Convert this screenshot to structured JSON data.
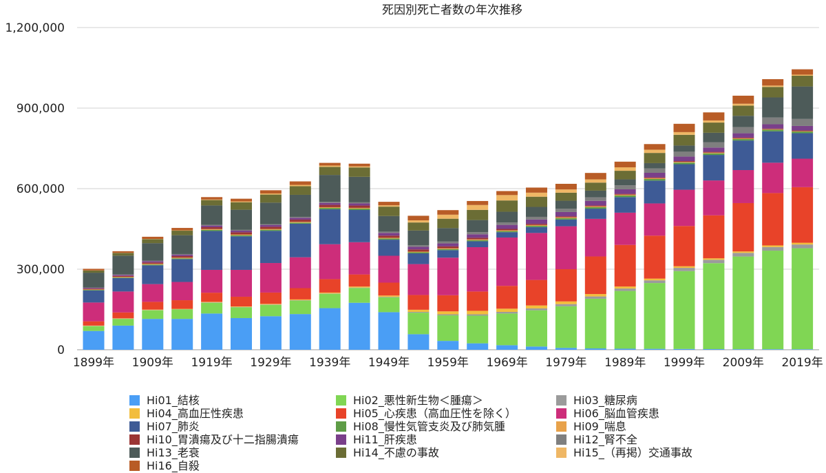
{
  "chart_data": {
    "type": "bar",
    "stacked": true,
    "title": "死因別死亡者数の年次推移",
    "ylim": [
      0,
      1200000
    ],
    "yticks": [
      "0",
      "300,000",
      "600,000",
      "900,000",
      "1,200,000"
    ],
    "ytick_values": [
      0,
      300000,
      600000,
      900000,
      1200000
    ],
    "xtick_labels": [
      "1899年",
      "1909年",
      "1919年",
      "1929年",
      "1939年",
      "1949年",
      "1959年",
      "1969年",
      "1979年",
      "1989年",
      "1999年",
      "2009年",
      "2019年"
    ],
    "categories": [
      1899,
      1904,
      1909,
      1914,
      1919,
      1924,
      1929,
      1934,
      1939,
      1944,
      1949,
      1954,
      1959,
      1964,
      1969,
      1974,
      1979,
      1984,
      1989,
      1994,
      1999,
      2004,
      2009,
      2014,
      2019
    ],
    "series": [
      {
        "name": "Hi01_結核",
        "color": "#4a9ef5",
        "values": [
          70000,
          90000,
          115000,
          115000,
          135000,
          118000,
          125000,
          133000,
          155000,
          175000,
          140000,
          58000,
          33000,
          24000,
          17000,
          12000,
          7000,
          5000,
          4000,
          3500,
          3000,
          2500,
          2200,
          2100,
          2000
        ]
      },
      {
        "name": "Hi02_悪性新生物＜腫瘍＞",
        "color": "#80d654",
        "values": [
          18000,
          25000,
          32000,
          35000,
          40000,
          40000,
          42000,
          50000,
          53000,
          55000,
          55000,
          80000,
          95000,
          103000,
          118000,
          135000,
          155000,
          185000,
          215000,
          245000,
          290000,
          320000,
          345000,
          367000,
          376000
        ]
      },
      {
        "name": "Hi03_糖尿病",
        "color": "#9b9b9b",
        "values": [
          1000,
          1000,
          1000,
          1000,
          1500,
          1500,
          1500,
          1500,
          1500,
          1500,
          2000,
          3000,
          4000,
          5000,
          6000,
          7000,
          8000,
          8500,
          9000,
          10000,
          12000,
          12500,
          13500,
          13500,
          14000
        ]
      },
      {
        "name": "Hi04_高血圧性疾患",
        "color": "#f2bd3c",
        "values": [
          1000,
          1000,
          1500,
          1500,
          2000,
          2000,
          2500,
          3000,
          3500,
          4000,
          5000,
          8000,
          11000,
          13000,
          12000,
          11000,
          10000,
          9000,
          7500,
          6500,
          6000,
          5500,
          5500,
          6000,
          6500
        ]
      },
      {
        "name": "Hi05_心疾患（高血圧性を除く）",
        "color": "#e84329",
        "values": [
          16000,
          22000,
          29000,
          32000,
          34000,
          36000,
          42000,
          42000,
          50000,
          45000,
          48000,
          55000,
          60000,
          72000,
          85000,
          95000,
          120000,
          140000,
          155000,
          160000,
          150000,
          160000,
          180000,
          195000,
          207000
        ]
      },
      {
        "name": "Hi06_脳血管疾患",
        "color": "#cd2d7a",
        "values": [
          70000,
          78000,
          66000,
          68000,
          85000,
          100000,
          110000,
          115000,
          130000,
          120000,
          100000,
          115000,
          140000,
          165000,
          180000,
          175000,
          160000,
          140000,
          120000,
          120000,
          135000,
          130000,
          123000,
          113000,
          106000
        ]
      },
      {
        "name": "Hi07_肺炎",
        "color": "#3e5b96",
        "values": [
          45000,
          50000,
          70000,
          85000,
          145000,
          125000,
          120000,
          125000,
          130000,
          120000,
          60000,
          40000,
          28000,
          22000,
          20000,
          22000,
          25000,
          38000,
          58000,
          85000,
          95000,
          95000,
          110000,
          117000,
          95000
        ]
      },
      {
        "name": "Hi08_慢性気管支炎及び肺気腫",
        "color": "#5e9c46",
        "values": [
          2000,
          2000,
          3000,
          3000,
          4000,
          4000,
          4000,
          4000,
          5000,
          5000,
          4500,
          4000,
          4000,
          4000,
          4000,
          4500,
          5000,
          5500,
          6000,
          6000,
          6000,
          6000,
          6000,
          6000,
          6000
        ]
      },
      {
        "name": "Hi09_喘息",
        "color": "#e8a24a",
        "values": [
          1500,
          2000,
          2500,
          2500,
          3000,
          3000,
          3000,
          3000,
          3000,
          3000,
          2500,
          2500,
          3000,
          3000,
          3000,
          3000,
          3000,
          3000,
          3000,
          3000,
          2500,
          2500,
          2000,
          1500,
          1500
        ]
      },
      {
        "name": "Hi10_胃潰瘍及び十二指腸潰瘍",
        "color": "#9b3534",
        "values": [
          3000,
          4000,
          5000,
          6000,
          7000,
          8000,
          8000,
          8000,
          8500,
          8500,
          8000,
          8000,
          7000,
          6000,
          5000,
          4500,
          4000,
          3500,
          3000,
          3000,
          3000,
          3000,
          3000,
          2700,
          2500
        ]
      },
      {
        "name": "Hi11_肝疾患",
        "color": "#7a3f8a",
        "values": [
          3000,
          4000,
          5000,
          5000,
          6000,
          6000,
          7000,
          7000,
          7500,
          8000,
          10000,
          10000,
          11000,
          13000,
          15000,
          16000,
          16000,
          17000,
          17000,
          17000,
          17000,
          16000,
          16000,
          16000,
          17000
        ]
      },
      {
        "name": "Hi12_腎不全",
        "color": "#7f7f7f",
        "values": [
          1500,
          1500,
          2000,
          2500,
          3000,
          3000,
          3000,
          3500,
          4000,
          4000,
          5000,
          5500,
          7000,
          8000,
          9000,
          10000,
          12000,
          13000,
          15000,
          16000,
          18000,
          20000,
          23000,
          25000,
          26000
        ]
      },
      {
        "name": "Hi13_老衰",
        "color": "#4d5b59",
        "values": [
          55000,
          70000,
          65000,
          70000,
          72000,
          75000,
          80000,
          82000,
          100000,
          95000,
          58000,
          55000,
          50000,
          45000,
          40000,
          37000,
          30000,
          25000,
          22000,
          20000,
          23000,
          35000,
          42000,
          75000,
          121000
        ]
      },
      {
        "name": "Hi14_不慮の事故",
        "color": "#6b6d35",
        "values": [
          8000,
          10000,
          15000,
          17000,
          20000,
          28000,
          30000,
          32000,
          30000,
          35000,
          35000,
          30000,
          35000,
          38000,
          42000,
          38000,
          30000,
          30000,
          32000,
          38000,
          40000,
          38000,
          38000,
          39000,
          40000
        ]
      },
      {
        "name": "Hi15_（再掲）交通事故",
        "color": "#efb765",
        "values": [
          500,
          500,
          800,
          1200,
          2000,
          3000,
          4000,
          5000,
          5000,
          4000,
          5000,
          8000,
          15000,
          18000,
          20000,
          15000,
          12000,
          12000,
          13000,
          12000,
          10000,
          8000,
          7000,
          5000,
          4000
        ]
      },
      {
        "name": "Hi16_自殺",
        "color": "#b85c26",
        "values": [
          6000,
          6000,
          8000,
          9000,
          9000,
          10000,
          12000,
          13000,
          10000,
          10000,
          13000,
          17000,
          17000,
          15000,
          15000,
          19000,
          21000,
          24000,
          21000,
          21000,
          31000,
          30000,
          30000,
          24000,
          20000
        ]
      }
    ]
  }
}
